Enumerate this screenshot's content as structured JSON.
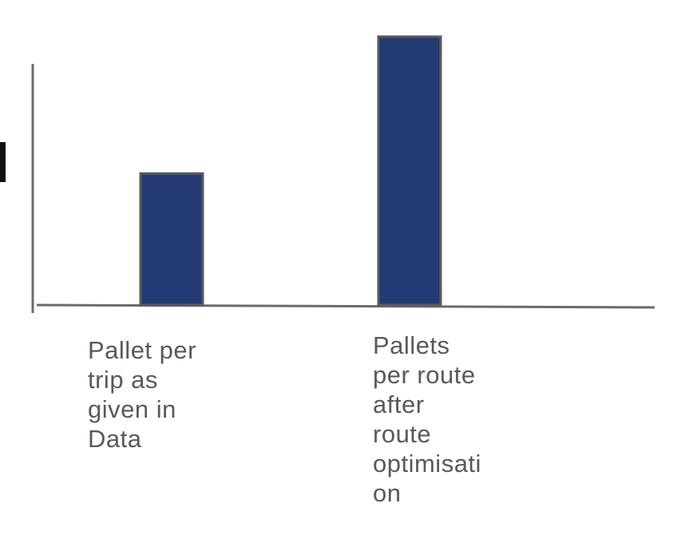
{
  "chart_data": {
    "type": "bar",
    "categories": [
      "Pallet per\ntrip as\ngiven in\nData",
      "Pallets\nper route\nafter\nroute\noptimisati\non"
    ],
    "values": [
      10,
      20.4
    ],
    "ylim": [
      0,
      21
    ],
    "title": "",
    "xlabel": "",
    "ylabel": "",
    "grid": false,
    "legend": "none",
    "colors": {
      "bar_fill": "#243a75",
      "bar_stroke": "#5a5a5a",
      "axis": "#6b6b6b",
      "label": "#595959",
      "edge_mark": "#111111"
    }
  }
}
